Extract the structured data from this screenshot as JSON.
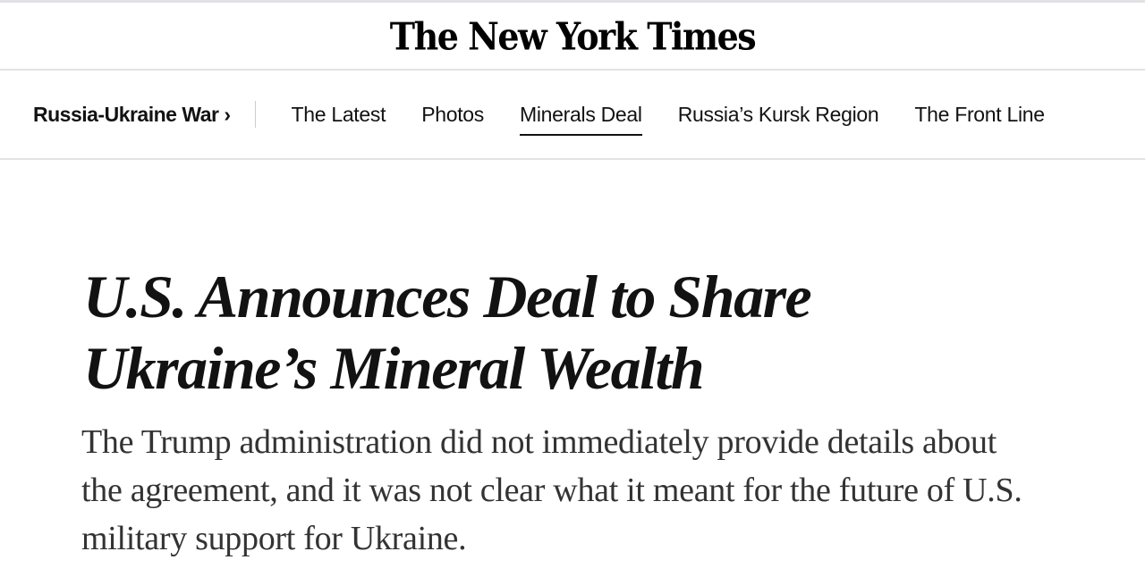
{
  "masthead": {
    "logo": "The New York Times"
  },
  "nav": {
    "section": "Russia-Ukraine War ›",
    "items": [
      {
        "label": "The Latest",
        "active": false
      },
      {
        "label": "Photos",
        "active": false
      },
      {
        "label": "Minerals Deal",
        "active": true
      },
      {
        "label": "Russia’s Kursk Region",
        "active": false
      },
      {
        "label": "The Front Line",
        "active": false
      }
    ]
  },
  "article": {
    "headline": "U.S. Announces Deal to Share Ukraine’s Mineral Wealth",
    "summary": "The Trump administration did not immediately provide details about the agreement, and it was not clear what it meant for the future of U.S. military support for Ukraine."
  }
}
